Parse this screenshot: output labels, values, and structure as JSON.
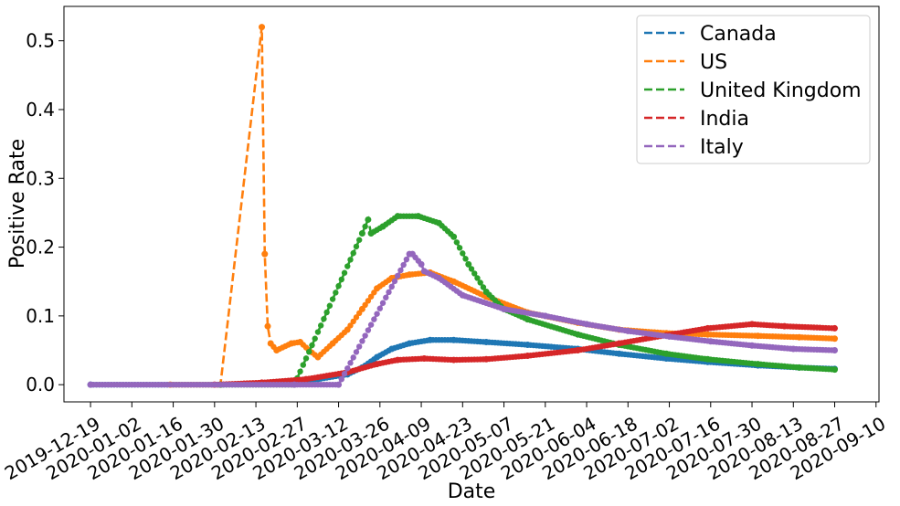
{
  "chart_data": {
    "type": "line",
    "xlabel": "Date",
    "ylabel": "Positive Rate",
    "x_range": [
      "2019-12-10",
      "2020-09-11"
    ],
    "ylim": [
      -0.025,
      0.55
    ],
    "x_ticks": [
      "2019-12-19",
      "2020-01-02",
      "2020-01-16",
      "2020-01-30",
      "2020-02-13",
      "2020-02-27",
      "2020-03-12",
      "2020-03-26",
      "2020-04-09",
      "2020-04-23",
      "2020-05-07",
      "2020-05-21",
      "2020-06-04",
      "2020-06-18",
      "2020-07-02",
      "2020-07-16",
      "2020-07-30",
      "2020-08-13",
      "2020-08-27",
      "2020-09-10"
    ],
    "y_ticks": [
      "0.0",
      "0.1",
      "0.2",
      "0.3",
      "0.4",
      "0.5"
    ],
    "grid": false,
    "legend_position": "top-right",
    "series": [
      {
        "name": "Canada",
        "color": "#1f77b4",
        "points": [
          [
            "2019-12-19",
            0
          ],
          [
            "2020-02-01",
            0
          ],
          [
            "2020-02-20",
            0.003
          ],
          [
            "2020-03-05",
            0.008
          ],
          [
            "2020-03-15",
            0.015
          ],
          [
            "2020-03-20",
            0.025
          ],
          [
            "2020-03-25",
            0.04
          ],
          [
            "2020-03-30",
            0.052
          ],
          [
            "2020-04-05",
            0.06
          ],
          [
            "2020-04-12",
            0.065
          ],
          [
            "2020-04-20",
            0.065
          ],
          [
            "2020-05-01",
            0.062
          ],
          [
            "2020-05-15",
            0.058
          ],
          [
            "2020-06-01",
            0.052
          ],
          [
            "2020-06-15",
            0.045
          ],
          [
            "2020-07-01",
            0.038
          ],
          [
            "2020-07-15",
            0.033
          ],
          [
            "2020-08-01",
            0.028
          ],
          [
            "2020-08-15",
            0.025
          ],
          [
            "2020-08-27",
            0.023
          ]
        ]
      },
      {
        "name": "US",
        "color": "#ff7f0e",
        "points": [
          [
            "2020-01-15",
            0
          ],
          [
            "2020-02-01",
            0
          ],
          [
            "2020-02-15",
            0.52
          ],
          [
            "2020-02-16",
            0.19
          ],
          [
            "2020-02-17",
            0.085
          ],
          [
            "2020-02-18",
            0.06
          ],
          [
            "2020-02-20",
            0.05
          ],
          [
            "2020-02-25",
            0.06
          ],
          [
            "2020-02-28",
            0.062
          ],
          [
            "2020-03-02",
            0.05
          ],
          [
            "2020-03-05",
            0.04
          ],
          [
            "2020-03-10",
            0.06
          ],
          [
            "2020-03-15",
            0.08
          ],
          [
            "2020-03-20",
            0.11
          ],
          [
            "2020-03-25",
            0.14
          ],
          [
            "2020-03-30",
            0.155
          ],
          [
            "2020-04-05",
            0.16
          ],
          [
            "2020-04-12",
            0.163
          ],
          [
            "2020-04-20",
            0.15
          ],
          [
            "2020-05-01",
            0.128
          ],
          [
            "2020-05-15",
            0.105
          ],
          [
            "2020-06-01",
            0.09
          ],
          [
            "2020-06-15",
            0.08
          ],
          [
            "2020-07-01",
            0.075
          ],
          [
            "2020-07-15",
            0.073
          ],
          [
            "2020-08-01",
            0.071
          ],
          [
            "2020-08-15",
            0.069
          ],
          [
            "2020-08-27",
            0.067
          ]
        ]
      },
      {
        "name": "United Kingdom",
        "color": "#2ca02c",
        "points": [
          [
            "2020-02-01",
            0
          ],
          [
            "2020-02-26",
            0
          ],
          [
            "2020-03-20",
            0.22
          ],
          [
            "2020-03-22",
            0.24
          ],
          [
            "2020-03-23",
            0.22
          ],
          [
            "2020-03-27",
            0.23
          ],
          [
            "2020-04-01",
            0.245
          ],
          [
            "2020-04-08",
            0.245
          ],
          [
            "2020-04-15",
            0.235
          ],
          [
            "2020-04-20",
            0.215
          ],
          [
            "2020-04-25",
            0.175
          ],
          [
            "2020-05-01",
            0.135
          ],
          [
            "2020-05-07",
            0.11
          ],
          [
            "2020-05-15",
            0.095
          ],
          [
            "2020-06-01",
            0.073
          ],
          [
            "2020-06-15",
            0.058
          ],
          [
            "2020-07-01",
            0.045
          ],
          [
            "2020-07-15",
            0.037
          ],
          [
            "2020-08-01",
            0.03
          ],
          [
            "2020-08-15",
            0.025
          ],
          [
            "2020-08-27",
            0.022
          ]
        ]
      },
      {
        "name": "India",
        "color": "#d62728",
        "points": [
          [
            "2020-01-30",
            0
          ],
          [
            "2020-02-15",
            0.003
          ],
          [
            "2020-03-01",
            0.008
          ],
          [
            "2020-03-15",
            0.018
          ],
          [
            "2020-03-25",
            0.03
          ],
          [
            "2020-04-01",
            0.036
          ],
          [
            "2020-04-10",
            0.038
          ],
          [
            "2020-04-20",
            0.036
          ],
          [
            "2020-05-01",
            0.037
          ],
          [
            "2020-05-15",
            0.042
          ],
          [
            "2020-06-01",
            0.05
          ],
          [
            "2020-06-15",
            0.06
          ],
          [
            "2020-07-01",
            0.072
          ],
          [
            "2020-07-15",
            0.082
          ],
          [
            "2020-07-30",
            0.088
          ],
          [
            "2020-08-10",
            0.085
          ],
          [
            "2020-08-27",
            0.082
          ]
        ]
      },
      {
        "name": "Italy",
        "color": "#9467bd",
        "points": [
          [
            "2019-12-19",
            0
          ],
          [
            "2020-02-26",
            0
          ],
          [
            "2020-03-12",
            0
          ],
          [
            "2020-04-05",
            0.19
          ],
          [
            "2020-04-06",
            0.19
          ],
          [
            "2020-04-09",
            0.175
          ],
          [
            "2020-04-10",
            0.165
          ],
          [
            "2020-04-15",
            0.155
          ],
          [
            "2020-04-23",
            0.13
          ],
          [
            "2020-05-07",
            0.11
          ],
          [
            "2020-05-21",
            0.1
          ],
          [
            "2020-06-04",
            0.088
          ],
          [
            "2020-06-18",
            0.078
          ],
          [
            "2020-07-02",
            0.07
          ],
          [
            "2020-07-16",
            0.063
          ],
          [
            "2020-07-30",
            0.057
          ],
          [
            "2020-08-13",
            0.052
          ],
          [
            "2020-08-27",
            0.05
          ]
        ]
      }
    ]
  }
}
